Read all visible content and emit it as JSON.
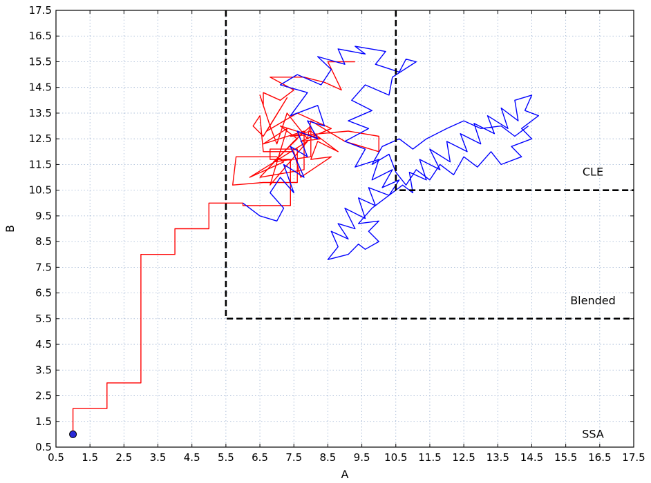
{
  "chart_data": {
    "type": "line",
    "title": "",
    "xlabel": "A",
    "ylabel": "B",
    "xlim": [
      0.5,
      17.5
    ],
    "ylim": [
      0.5,
      17.5
    ],
    "grid": true,
    "xticks": [
      "0.5",
      "1.5",
      "2.5",
      "3.5",
      "4.5",
      "5.5",
      "6.5",
      "7.5",
      "8.5",
      "9.5",
      "10.5",
      "11.5",
      "12.5",
      "13.5",
      "14.5",
      "15.5",
      "16.5",
      "17.5"
    ],
    "yticks": [
      "0.5",
      "1.5",
      "2.5",
      "3.5",
      "4.5",
      "5.5",
      "6.5",
      "7.5",
      "8.5",
      "9.5",
      "10.5",
      "11.5",
      "12.5",
      "13.5",
      "14.5",
      "15.5",
      "16.5",
      "17.5"
    ],
    "start_point": {
      "x": 1.0,
      "y": 1.0
    },
    "region_boundaries": [
      {
        "label": "Blended",
        "corner": {
          "x": 5.5,
          "y": 5.5
        }
      },
      {
        "label": "CLE",
        "corner": {
          "x": 10.5,
          "y": 10.5
        }
      }
    ],
    "region_labels": [
      {
        "text": "SSA",
        "x": 16.3,
        "y": 1.0
      },
      {
        "text": "Blended",
        "x": 16.3,
        "y": 6.2
      },
      {
        "text": "CLE",
        "x": 16.3,
        "y": 11.2
      }
    ],
    "series": [
      {
        "color": "#ff0000",
        "points": [
          [
            1.0,
            1.0
          ],
          [
            1.0,
            2.0
          ],
          [
            2.0,
            2.0
          ],
          [
            2.0,
            3.0
          ],
          [
            3.0,
            3.0
          ],
          [
            3.0,
            8.0
          ],
          [
            4.0,
            8.0
          ],
          [
            4.0,
            9.0
          ],
          [
            5.0,
            9.0
          ],
          [
            5.0,
            10.0
          ],
          [
            6.0,
            10.0
          ],
          [
            6.0,
            9.9
          ],
          [
            7.4,
            9.9
          ],
          [
            7.4,
            11.7
          ],
          [
            6.8,
            11.7
          ],
          [
            6.8,
            12.1
          ],
          [
            7.6,
            12.1
          ],
          [
            7.6,
            10.8
          ],
          [
            6.6,
            10.8
          ],
          [
            5.7,
            10.7
          ],
          [
            5.8,
            11.8
          ],
          [
            7.0,
            11.8
          ],
          [
            7.2,
            11.6
          ],
          [
            6.2,
            11.0
          ],
          [
            7.9,
            12.4
          ],
          [
            6.8,
            10.7
          ],
          [
            7.3,
            12.9
          ],
          [
            6.6,
            12.3
          ],
          [
            7.8,
            12.8
          ],
          [
            7.8,
            11.3
          ],
          [
            6.5,
            11.0
          ],
          [
            7.5,
            12.4
          ],
          [
            8.0,
            13.0
          ],
          [
            8.0,
            11.8
          ],
          [
            6.9,
            11.6
          ],
          [
            7.6,
            12.5
          ],
          [
            7.1,
            13.0
          ],
          [
            8.3,
            12.5
          ],
          [
            7.7,
            12.4
          ],
          [
            8.6,
            12.9
          ],
          [
            7.6,
            13.5
          ],
          [
            6.7,
            12.8
          ],
          [
            7.3,
            14.1
          ],
          [
            6.6,
            12.6
          ],
          [
            6.3,
            13.0
          ],
          [
            6.5,
            13.4
          ],
          [
            6.6,
            12.0
          ],
          [
            7.5,
            12.0
          ],
          [
            7.7,
            11.0
          ],
          [
            8.6,
            11.8
          ],
          [
            8.0,
            11.7
          ],
          [
            8.2,
            12.4
          ],
          [
            8.8,
            12.0
          ],
          [
            8.0,
            12.8
          ],
          [
            7.4,
            12.6
          ],
          [
            9.1,
            12.8
          ],
          [
            10.0,
            12.6
          ],
          [
            10.0,
            12.0
          ],
          [
            9.0,
            12.4
          ],
          [
            8.0,
            13.2
          ],
          [
            7.9,
            12.5
          ],
          [
            7.3,
            13.5
          ],
          [
            7.0,
            12.3
          ],
          [
            6.8,
            13.0
          ],
          [
            6.5,
            14.2
          ],
          [
            6.6,
            13.8
          ],
          [
            6.6,
            14.3
          ],
          [
            7.1,
            14.0
          ],
          [
            7.5,
            14.4
          ],
          [
            6.8,
            14.9
          ],
          [
            7.8,
            14.9
          ],
          [
            8.4,
            14.7
          ],
          [
            8.9,
            14.4
          ],
          [
            8.5,
            15.5
          ],
          [
            9.3,
            15.5
          ]
        ]
      },
      {
        "color": "#0000ff",
        "points": [
          [
            6.0,
            10.0
          ],
          [
            6.5,
            9.5
          ],
          [
            7.0,
            9.3
          ],
          [
            7.2,
            9.8
          ],
          [
            6.8,
            10.4
          ],
          [
            7.1,
            11.0
          ],
          [
            7.5,
            10.4
          ],
          [
            7.2,
            11.5
          ],
          [
            7.8,
            11.0
          ],
          [
            7.4,
            12.2
          ],
          [
            7.9,
            11.8
          ],
          [
            7.6,
            12.8
          ],
          [
            8.2,
            12.5
          ],
          [
            7.9,
            13.2
          ],
          [
            8.4,
            13.0
          ],
          [
            8.2,
            13.8
          ],
          [
            7.4,
            13.4
          ],
          [
            7.9,
            14.3
          ],
          [
            7.1,
            14.6
          ],
          [
            7.6,
            15.0
          ],
          [
            8.3,
            14.6
          ],
          [
            8.6,
            15.2
          ],
          [
            8.2,
            15.7
          ],
          [
            9.0,
            15.4
          ],
          [
            8.8,
            16.0
          ],
          [
            9.6,
            15.8
          ],
          [
            9.3,
            16.1
          ],
          [
            10.2,
            15.9
          ],
          [
            9.9,
            15.4
          ],
          [
            10.6,
            15.1
          ],
          [
            10.8,
            15.6
          ],
          [
            11.1,
            15.5
          ],
          [
            10.4,
            14.9
          ],
          [
            10.3,
            14.2
          ],
          [
            9.6,
            14.6
          ],
          [
            9.2,
            14.0
          ],
          [
            9.8,
            13.6
          ],
          [
            9.1,
            13.2
          ],
          [
            9.7,
            12.9
          ],
          [
            9.0,
            12.4
          ],
          [
            9.6,
            12.1
          ],
          [
            9.3,
            11.4
          ],
          [
            10.0,
            11.7
          ],
          [
            9.8,
            10.9
          ],
          [
            10.4,
            11.3
          ],
          [
            10.1,
            10.6
          ],
          [
            10.6,
            10.9
          ],
          [
            10.3,
            10.3
          ],
          [
            9.7,
            10.6
          ],
          [
            9.9,
            9.9
          ],
          [
            9.4,
            10.2
          ],
          [
            9.6,
            9.4
          ],
          [
            9.0,
            9.8
          ],
          [
            9.3,
            9.0
          ],
          [
            8.8,
            9.2
          ],
          [
            9.1,
            8.6
          ],
          [
            8.6,
            8.9
          ],
          [
            8.8,
            8.3
          ],
          [
            8.5,
            7.8
          ],
          [
            9.1,
            8.0
          ],
          [
            9.4,
            8.4
          ],
          [
            9.6,
            8.2
          ],
          [
            10.0,
            8.5
          ],
          [
            9.7,
            8.9
          ],
          [
            10.0,
            9.3
          ],
          [
            9.4,
            9.2
          ],
          [
            9.8,
            9.8
          ],
          [
            10.2,
            10.2
          ],
          [
            10.7,
            10.7
          ],
          [
            11.0,
            10.4
          ],
          [
            10.9,
            11.2
          ],
          [
            11.4,
            10.9
          ],
          [
            11.2,
            11.7
          ],
          [
            11.8,
            11.3
          ],
          [
            11.5,
            12.1
          ],
          [
            12.1,
            11.6
          ],
          [
            12.0,
            12.4
          ],
          [
            12.6,
            12.0
          ],
          [
            12.4,
            12.7
          ],
          [
            13.0,
            12.3
          ],
          [
            12.8,
            13.1
          ],
          [
            13.4,
            12.7
          ],
          [
            13.2,
            13.4
          ],
          [
            13.8,
            12.9
          ],
          [
            13.6,
            13.7
          ],
          [
            14.1,
            13.2
          ],
          [
            14.0,
            14.0
          ],
          [
            14.5,
            14.2
          ],
          [
            14.3,
            13.6
          ],
          [
            14.7,
            13.4
          ],
          [
            14.2,
            12.9
          ],
          [
            14.5,
            12.5
          ],
          [
            13.9,
            12.2
          ],
          [
            14.2,
            11.8
          ],
          [
            13.6,
            11.5
          ],
          [
            13.3,
            12.0
          ],
          [
            12.9,
            11.4
          ],
          [
            12.5,
            11.8
          ],
          [
            12.2,
            11.1
          ],
          [
            11.8,
            11.5
          ],
          [
            11.5,
            10.9
          ],
          [
            11.1,
            11.3
          ],
          [
            10.8,
            10.7
          ],
          [
            10.5,
            11.2
          ],
          [
            10.3,
            11.9
          ],
          [
            9.8,
            11.5
          ],
          [
            10.1,
            12.2
          ],
          [
            10.6,
            12.5
          ],
          [
            11.0,
            12.1
          ],
          [
            11.4,
            12.5
          ],
          [
            12.0,
            12.9
          ],
          [
            12.5,
            13.2
          ],
          [
            13.0,
            12.9
          ],
          [
            13.6,
            13.0
          ],
          [
            14.0,
            12.6
          ],
          [
            14.4,
            13.0
          ]
        ]
      }
    ]
  }
}
